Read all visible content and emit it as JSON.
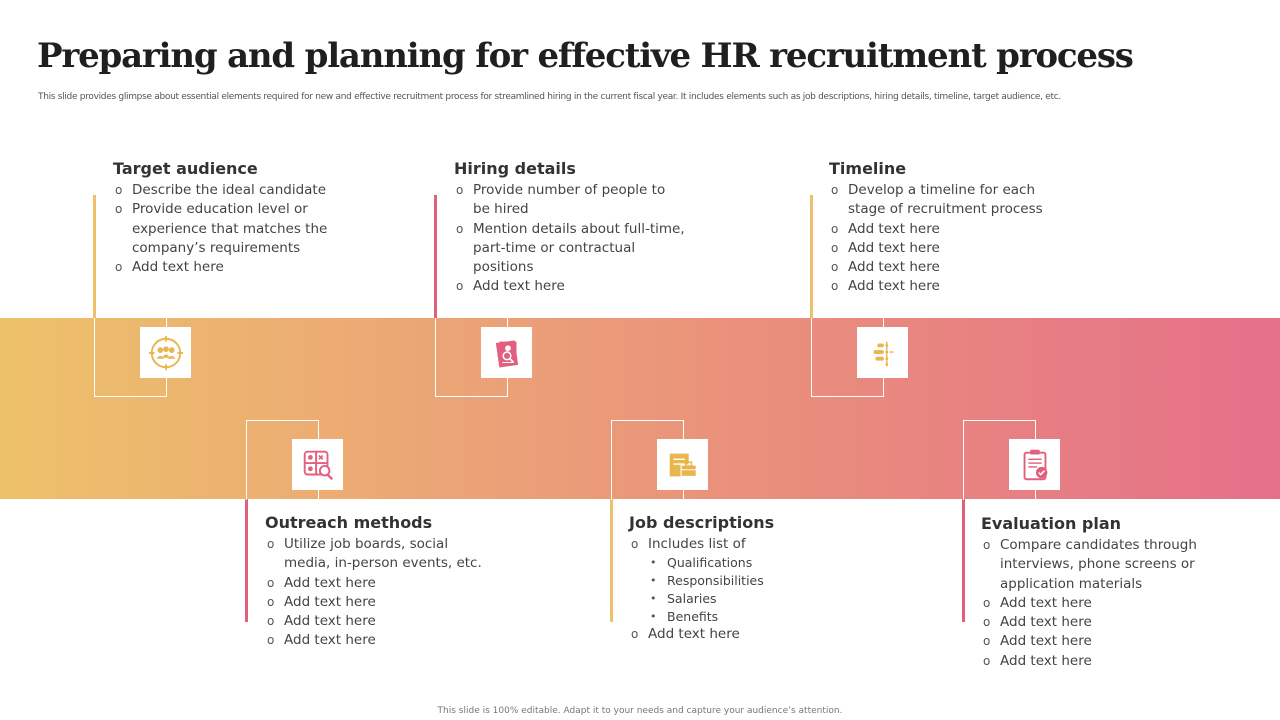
{
  "header": {
    "title": "Preparing and planning for effective HR recruitment process",
    "subtitle": "This slide provides glimpse about essential elements required for new and effective recruitment process for streamlined hiring in the current fiscal year. It includes elements such as job descriptions, hiring details, timeline, target audience, etc."
  },
  "colors": {
    "gold": "#edc16a",
    "peach": "#eba277",
    "pink": "#e5708a",
    "icon_gold": "#e9b64e",
    "icon_pink": "#e2607d"
  },
  "sections": {
    "target_audience": {
      "title": "Target audience",
      "icon": "target-audience-icon",
      "items": [
        "Describe the ideal candidate",
        "Provide education level or experience that matches the company’s requirements",
        "Add text here"
      ]
    },
    "hiring_details": {
      "title": "Hiring details",
      "icon": "candidate-search-icon",
      "items": [
        "Provide number of people to be hired",
        "Mention details about full-time, part-time or contractual positions",
        "Add text here"
      ]
    },
    "timeline": {
      "title": "Timeline",
      "icon": "timeline-icon",
      "items": [
        "Develop a timeline for each stage of recruitment process",
        "Add text here",
        "Add text here",
        "Add text here",
        "Add text here"
      ]
    },
    "outreach_methods": {
      "title": "Outreach methods",
      "icon": "outreach-strategy-icon",
      "items": [
        "Utilize job boards, social media, in-person events, etc.",
        "Add text here",
        "Add text here",
        "Add text here",
        "Add text here"
      ]
    },
    "job_descriptions": {
      "title": "Job descriptions",
      "icon": "job-documents-icon",
      "items": [
        "Includes list of",
        "Add text here"
      ],
      "sub_items": [
        "Qualifications",
        "Responsibilities",
        "Salaries",
        "Benefits"
      ]
    },
    "evaluation_plan": {
      "title": "Evaluation plan",
      "icon": "clipboard-check-icon",
      "items": [
        "Compare candidates through interviews, phone screens or application materials",
        "Add text here",
        "Add text here",
        "Add text here",
        "Add text here"
      ]
    }
  },
  "footer": {
    "note": "This slide is 100% editable. Adapt it to your needs and capture your audience’s attention."
  }
}
